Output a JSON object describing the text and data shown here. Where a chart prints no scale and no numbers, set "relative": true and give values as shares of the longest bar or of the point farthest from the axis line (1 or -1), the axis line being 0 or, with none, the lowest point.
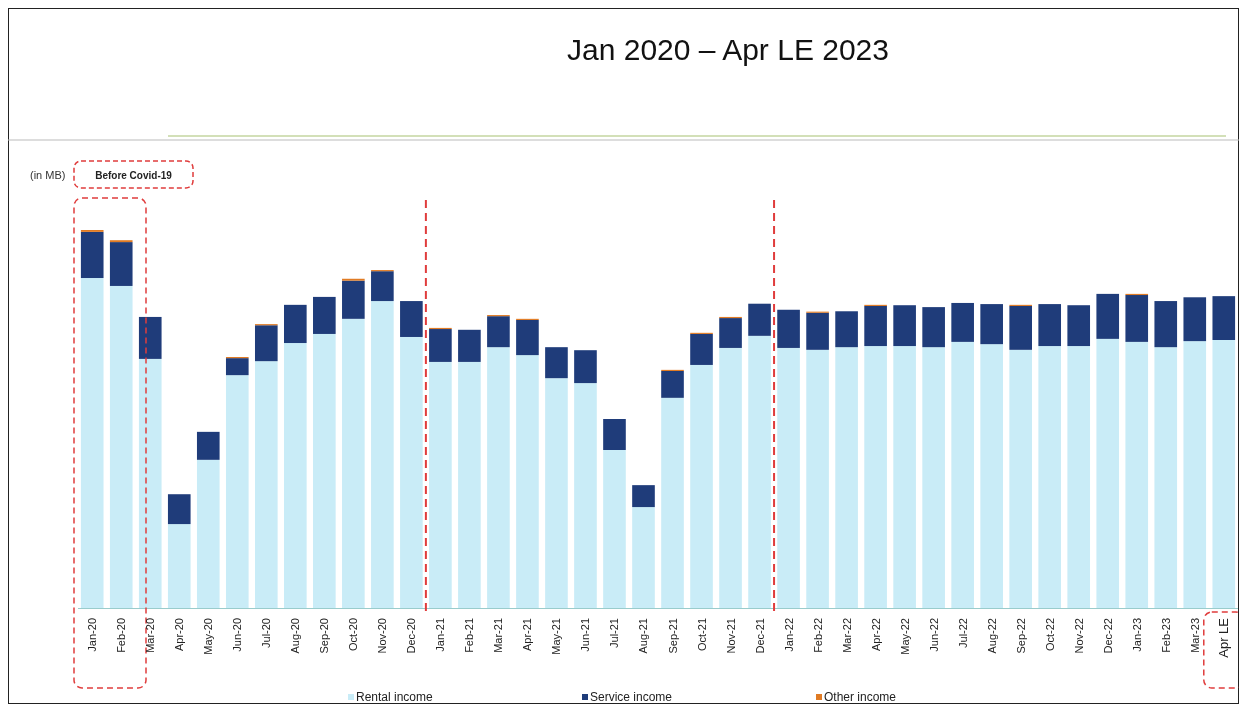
{
  "chart_data": {
    "type": "bar",
    "title": "Jan 2020 – Apr LE 2023",
    "stacked": true,
    "relative": true,
    "legend": "bottom",
    "annotations": [
      "(in MB)",
      "Before Covid-19"
    ],
    "categories": [
      "Jan-20",
      "Feb-20",
      "Mar-20",
      "Apr-20",
      "May-20",
      "Jun-20",
      "Jul-20",
      "Aug-20",
      "Sep-20",
      "Oct-20",
      "Nov-20",
      "Dec-20",
      "Jan-21",
      "Feb-21",
      "Mar-21",
      "Apr-21",
      "May-21",
      "Jun-21",
      "Jul-21",
      "Aug-21",
      "Sep-21",
      "Oct-21",
      "Nov-21",
      "Dec-21",
      "Jan-22",
      "Feb-22",
      "Mar-22",
      "Apr-22",
      "May-22",
      "Jun-22",
      "Jul-22",
      "Aug-22",
      "Sep-22",
      "Oct-22",
      "Nov-22",
      "Dec-22",
      "Jan-23",
      "Feb-23",
      "Mar-23",
      "Apr LE"
    ],
    "series": [
      {
        "name": "Rental income",
        "color": "#c9ecf7",
        "values": [
          0.873,
          0.852,
          0.659,
          0.222,
          0.392,
          0.616,
          0.653,
          0.701,
          0.725,
          0.765,
          0.812,
          0.717,
          0.651,
          0.651,
          0.69,
          0.669,
          0.608,
          0.595,
          0.418,
          0.267,
          0.556,
          0.643,
          0.688,
          0.72,
          0.688,
          0.683,
          0.69,
          0.693,
          0.693,
          0.69,
          0.704,
          0.698,
          0.683,
          0.693,
          0.693,
          0.712,
          0.704,
          0.69,
          0.706,
          0.709
        ]
      },
      {
        "name": "Service income",
        "color": "#1f3c7a",
        "values": [
          0.122,
          0.116,
          0.111,
          0.079,
          0.074,
          0.045,
          0.095,
          0.101,
          0.098,
          0.101,
          0.079,
          0.095,
          0.087,
          0.085,
          0.082,
          0.093,
          0.082,
          0.087,
          0.082,
          0.058,
          0.071,
          0.082,
          0.079,
          0.085,
          0.101,
          0.098,
          0.095,
          0.106,
          0.108,
          0.106,
          0.103,
          0.106,
          0.116,
          0.111,
          0.108,
          0.119,
          0.124,
          0.122,
          0.116,
          0.116
        ]
      },
      {
        "name": "Other income",
        "color": "#e07b24",
        "values": [
          0.005,
          0.005,
          0,
          0,
          0,
          0.003,
          0.003,
          0,
          0,
          0.005,
          0.003,
          0,
          0.003,
          0,
          0.003,
          0.003,
          0,
          0,
          0,
          0,
          0.003,
          0.003,
          0.003,
          0,
          0,
          0.003,
          0,
          0.003,
          0,
          0,
          0,
          0,
          0.003,
          0,
          0,
          0,
          0.003,
          0,
          0,
          0
        ]
      }
    ]
  }
}
